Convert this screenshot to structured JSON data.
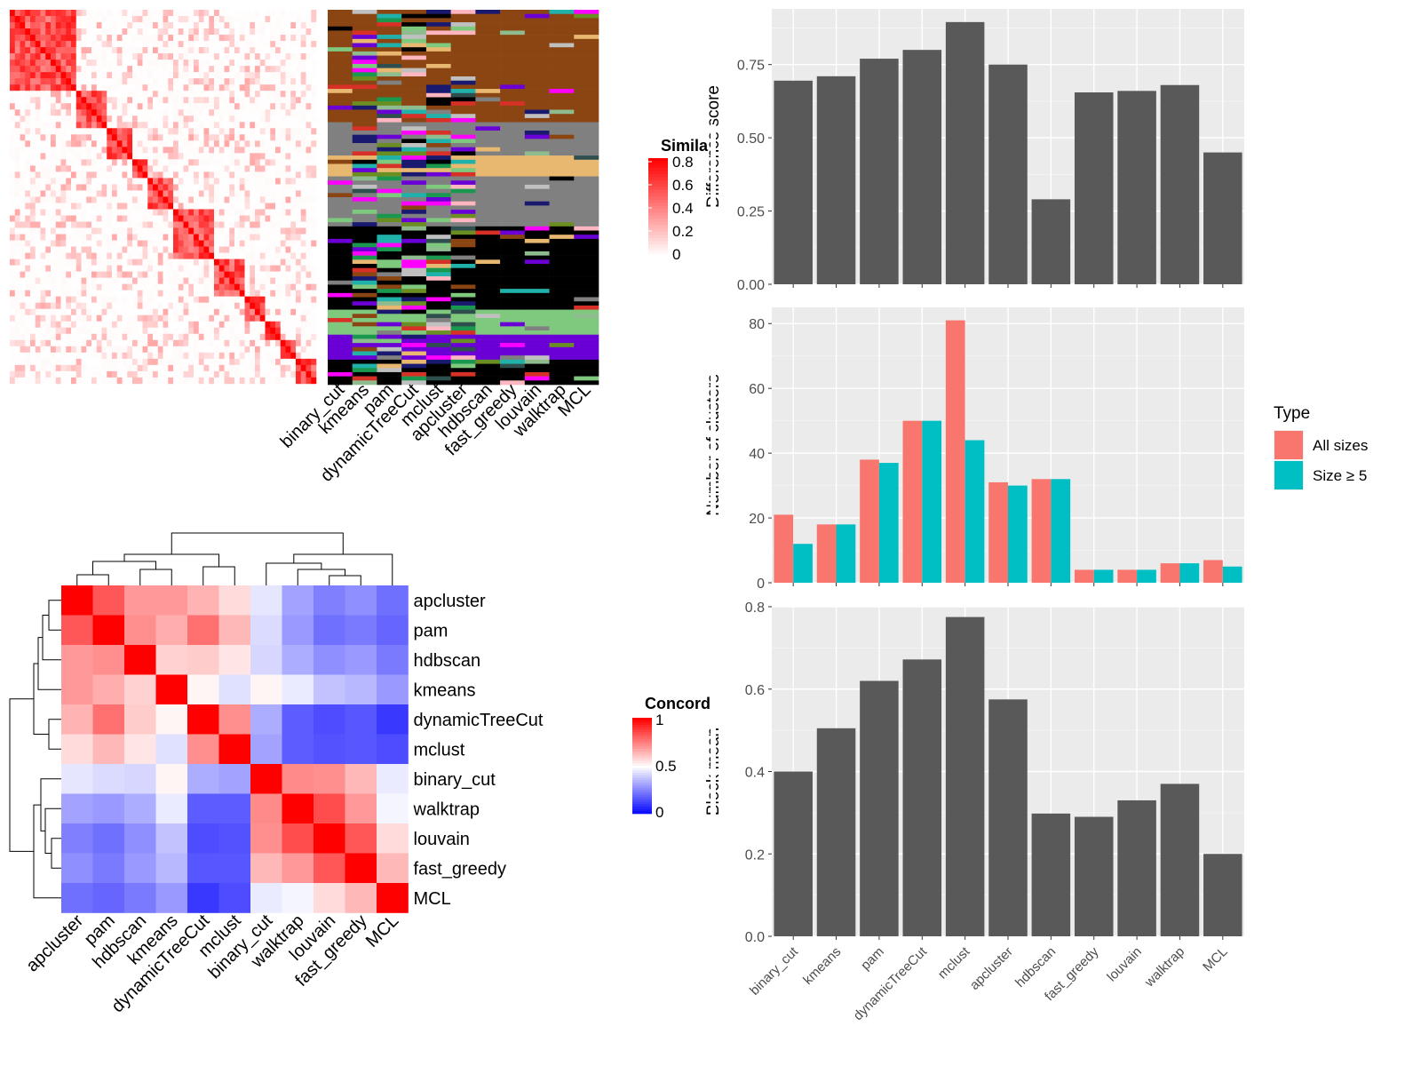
{
  "methods": [
    "binary_cut",
    "kmeans",
    "pam",
    "dynamicTreeCut",
    "mclust",
    "apcluster",
    "hdbscan",
    "fast_greedy",
    "louvain",
    "walktrap",
    "MCL"
  ],
  "colors": {
    "panel_bg": "#ebebeb",
    "bar": "#595959",
    "all_sizes": "#f8766d",
    "size_ge5": "#00bfc4",
    "heat_high": "#ff0000",
    "heat_low": "#ffffff",
    "conc_high": "#ff0000",
    "conc_mid": "#ffffff",
    "conc_low": "#0000ff",
    "cluster_palette": [
      "#8b4513",
      "#808080",
      "#000000",
      "#7fc97f",
      "#6a00d6",
      "#e8b870",
      "#ff00ff",
      "#1a9850",
      "#20b2aa",
      "#c0c0c0",
      "#d73027",
      "#ffb6c1",
      "#191970",
      "#6b8e23",
      "#8fbc8f",
      "#2f4f4f"
    ]
  },
  "similarity_legend": {
    "title": "Simila",
    "ticks": [
      "0.8",
      "0.6",
      "0.4",
      "0.2",
      "0"
    ]
  },
  "concordance_legend": {
    "title": "Concord",
    "ticks": [
      "1",
      "0.5",
      "0"
    ]
  },
  "heatmap_labels": [
    "binary_cut",
    "kmeans",
    "pam",
    "dynamicTreeCut",
    "mclust",
    "apcluster",
    "hdbscan",
    "fast_greedy",
    "louvain",
    "walktrap",
    "MCL"
  ],
  "concordance": {
    "row_order": [
      "apcluster",
      "pam",
      "hdbscan",
      "kmeans",
      "dynamicTreeCut",
      "mclust",
      "binary_cut",
      "walktrap",
      "louvain",
      "fast_greedy",
      "MCL"
    ],
    "col_order": [
      "apcluster",
      "pam",
      "hdbscan",
      "kmeans",
      "dynamicTreeCut",
      "mclust",
      "binary_cut",
      "walktrap",
      "louvain",
      "fast_greedy",
      "MCL"
    ],
    "matrix": [
      [
        1.0,
        0.83,
        0.7,
        0.7,
        0.65,
        0.57,
        0.45,
        0.32,
        0.25,
        0.28,
        0.22
      ],
      [
        0.83,
        1.0,
        0.72,
        0.66,
        0.78,
        0.64,
        0.43,
        0.3,
        0.22,
        0.24,
        0.2
      ],
      [
        0.7,
        0.72,
        1.0,
        0.59,
        0.6,
        0.55,
        0.42,
        0.34,
        0.28,
        0.3,
        0.24
      ],
      [
        0.7,
        0.66,
        0.59,
        1.0,
        0.52,
        0.44,
        0.52,
        0.46,
        0.38,
        0.36,
        0.3
      ],
      [
        0.65,
        0.78,
        0.6,
        0.52,
        1.0,
        0.72,
        0.34,
        0.18,
        0.15,
        0.17,
        0.11
      ],
      [
        0.57,
        0.64,
        0.55,
        0.44,
        0.72,
        1.0,
        0.32,
        0.18,
        0.16,
        0.17,
        0.15
      ],
      [
        0.45,
        0.43,
        0.42,
        0.52,
        0.34,
        0.32,
        1.0,
        0.73,
        0.72,
        0.64,
        0.46
      ],
      [
        0.32,
        0.3,
        0.34,
        0.46,
        0.18,
        0.18,
        0.73,
        1.0,
        0.85,
        0.7,
        0.48
      ],
      [
        0.25,
        0.22,
        0.28,
        0.38,
        0.15,
        0.16,
        0.72,
        0.85,
        1.0,
        0.83,
        0.57
      ],
      [
        0.28,
        0.24,
        0.3,
        0.36,
        0.17,
        0.17,
        0.64,
        0.7,
        0.83,
        1.0,
        0.64
      ],
      [
        0.22,
        0.2,
        0.24,
        0.3,
        0.11,
        0.15,
        0.46,
        0.48,
        0.57,
        0.64,
        1.0
      ]
    ]
  },
  "chart_data": [
    {
      "type": "bar",
      "ylabel": "Difference score",
      "categories": [
        "binary_cut",
        "kmeans",
        "pam",
        "dynamicTreeCut",
        "mclust",
        "apcluster",
        "hdbscan",
        "fast_greedy",
        "louvain",
        "walktrap",
        "MCL"
      ],
      "values": [
        0.695,
        0.71,
        0.77,
        0.8,
        0.895,
        0.75,
        0.29,
        0.655,
        0.66,
        0.68,
        0.45
      ],
      "ylim": [
        0,
        0.94
      ],
      "yticks": [
        0.0,
        0.25,
        0.5,
        0.75
      ],
      "ytick_labels": [
        "0.00",
        "0.25",
        "0.50",
        "0.75"
      ],
      "grid": true
    },
    {
      "type": "bar",
      "ylabel": "Number of clusters",
      "categories": [
        "binary_cut",
        "kmeans",
        "pam",
        "dynamicTreeCut",
        "mclust",
        "apcluster",
        "hdbscan",
        "fast_greedy",
        "louvain",
        "walktrap",
        "MCL"
      ],
      "series": [
        {
          "name": "All sizes",
          "values": [
            21,
            18,
            38,
            50,
            81,
            31,
            32,
            4,
            4,
            6,
            7
          ]
        },
        {
          "name": "Size ≥ 5",
          "values": [
            12,
            18,
            37,
            50,
            44,
            30,
            32,
            4,
            4,
            6,
            5
          ]
        }
      ],
      "ylim": [
        0,
        85
      ],
      "yticks": [
        0,
        20,
        40,
        60,
        80
      ],
      "ytick_labels": [
        "0",
        "20",
        "40",
        "60",
        "80"
      ],
      "legend_title": "Type",
      "legend_position": "right",
      "grid": true
    },
    {
      "type": "bar",
      "ylabel": "Block mean",
      "categories": [
        "binary_cut",
        "kmeans",
        "pam",
        "dynamicTreeCut",
        "mclust",
        "apcluster",
        "hdbscan",
        "fast_greedy",
        "louvain",
        "walktrap",
        "MCL"
      ],
      "values": [
        0.4,
        0.505,
        0.62,
        0.672,
        0.775,
        0.575,
        0.298,
        0.29,
        0.33,
        0.37,
        0.2
      ],
      "ylim": [
        0,
        0.8
      ],
      "yticks": [
        0.0,
        0.2,
        0.4,
        0.6,
        0.8
      ],
      "ytick_labels": [
        "0.0",
        "0.2",
        "0.4",
        "0.6",
        "0.8"
      ],
      "grid": true
    }
  ]
}
